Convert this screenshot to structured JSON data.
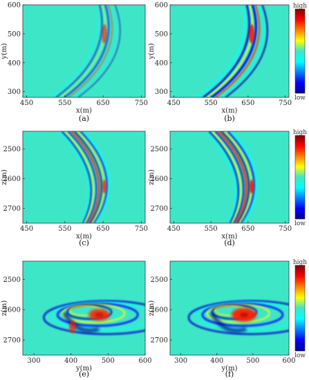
{
  "chart_data": [
    {
      "type": "heatmap",
      "id": "a",
      "caption": "(a)",
      "xlabel": "x(m)",
      "ylabel": "y(m)",
      "xticks": [
        450,
        550,
        650,
        750
      ],
      "yticks": [
        300,
        400,
        500,
        600
      ],
      "xlim": [
        440,
        760
      ],
      "ylim": [
        280,
        600
      ],
      "colorbar": null,
      "pattern": "arc-xy",
      "intensity": 0.7
    },
    {
      "type": "heatmap",
      "id": "b",
      "caption": "(b)",
      "xlabel": "x(m)",
      "ylabel": "y(m)",
      "xticks": [
        450,
        550,
        650,
        750
      ],
      "yticks": [
        300,
        400,
        500,
        600
      ],
      "xlim": [
        440,
        760
      ],
      "ylim": [
        280,
        600
      ],
      "colorbar": {
        "high": "high",
        "low": "low"
      },
      "pattern": "arc-xy",
      "intensity": 1.0
    },
    {
      "type": "heatmap",
      "id": "c",
      "caption": "(c)",
      "xlabel": "x(m)",
      "ylabel": "z(m)",
      "xticks": [
        450,
        550,
        650,
        750
      ],
      "yticks": [
        2500,
        2600,
        2700
      ],
      "xlim": [
        440,
        760
      ],
      "ylim": [
        2440,
        2750
      ],
      "colorbar": null,
      "pattern": "arc-xz",
      "intensity": 0.8
    },
    {
      "type": "heatmap",
      "id": "d",
      "caption": "(d)",
      "xlabel": "x(m)",
      "ylabel": "z(m)",
      "xticks": [
        450,
        550,
        650,
        750
      ],
      "yticks": [
        2500,
        2600,
        2700
      ],
      "xlim": [
        440,
        760
      ],
      "ylim": [
        2440,
        2750
      ],
      "colorbar": {
        "high": "high",
        "low": "low"
      },
      "pattern": "arc-xz",
      "intensity": 1.0
    },
    {
      "type": "heatmap",
      "id": "e",
      "caption": "(e)",
      "xlabel": "y(m)",
      "ylabel": "z(m)",
      "xticks": [
        300,
        400,
        500,
        600
      ],
      "yticks": [
        2500,
        2600,
        2700
      ],
      "xlim": [
        270,
        600
      ],
      "ylim": [
        2440,
        2750
      ],
      "colorbar": null,
      "pattern": "swirl-yz",
      "intensity": 0.8
    },
    {
      "type": "heatmap",
      "id": "f",
      "caption": "(f)",
      "xlabel": "y(m)",
      "ylabel": "z(m)",
      "xticks": [
        300,
        400,
        500,
        600
      ],
      "yticks": [
        2500,
        2600,
        2700
      ],
      "xlim": [
        270,
        600
      ],
      "ylim": [
        2440,
        2750
      ],
      "colorbar": {
        "high": "high",
        "low": "low"
      },
      "pattern": "swirl-yz",
      "intensity": 1.0
    }
  ],
  "colors": {
    "background": "#3ee6c8",
    "colormap": [
      "#00008f",
      "#0000ff",
      "#00ffff",
      "#3ee6c8",
      "#ffff00",
      "#ff7f00",
      "#ff0000",
      "#7f0000"
    ]
  }
}
